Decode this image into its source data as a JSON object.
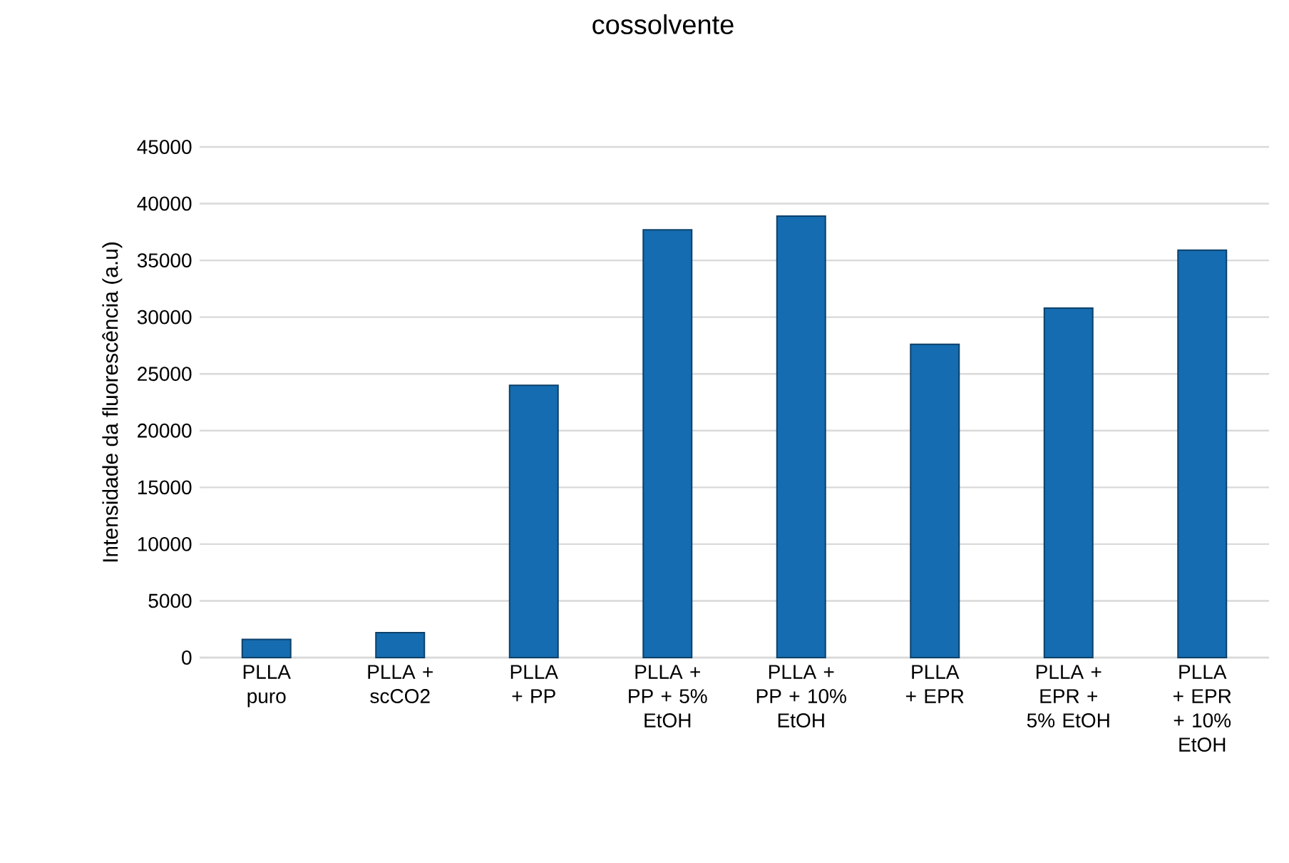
{
  "chart_data": {
    "type": "bar",
    "title": "cossolvente",
    "ylabel": "Intensidade da fluorescência (a.u)",
    "categories": [
      "PLLA puro",
      "PLLA + scCO2",
      "PLLA + PP",
      "PLLA + PP + 5% EtOH",
      "PLLA + PP + 10% EtOH",
      "PLLA + EPR",
      "PLLA + EPR + 5% EtOH",
      "PLLA + EPR + 10% EtOH"
    ],
    "values": [
      1600,
      2200,
      24000,
      37700,
      38900,
      27600,
      30800,
      35900
    ],
    "color": "#156cb0",
    "ylim": [
      0,
      45000
    ],
    "yticks": [
      0,
      5000,
      10000,
      15000,
      20000,
      25000,
      30000,
      35000,
      40000,
      45000
    ],
    "grid": "y"
  }
}
